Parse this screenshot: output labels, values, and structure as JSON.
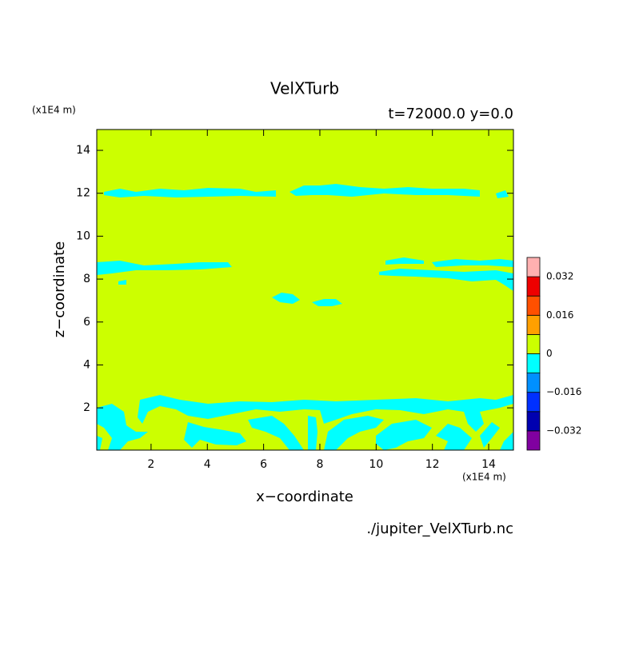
{
  "chart_data": {
    "type": "contour",
    "title": "VelXTurb",
    "subtitle": "t=72000.0 y=0.0",
    "x_label": "x−coordinate",
    "y_label": "z−coordinate",
    "x_unit": "(x1E4 m)",
    "y_unit": "(x1E4 m)",
    "source": "./jupiter_VelXTurb.nc",
    "xlim": [
      0.07,
      14.88
    ],
    "ylim": [
      0.03,
      14.97
    ],
    "xticks": [
      2,
      4,
      6,
      8,
      10,
      12,
      14
    ],
    "yticks": [
      2,
      4,
      6,
      8,
      10,
      12,
      14
    ],
    "colorbar": {
      "levels": [
        -0.04,
        -0.032,
        -0.024,
        -0.016,
        -0.008,
        0,
        0.008,
        0.016,
        0.024,
        0.032,
        0.04
      ],
      "colors": [
        "#8000a0",
        "#0000b0",
        "#0030ff",
        "#0090ff",
        "#00ffff",
        "#ccff00",
        "#ffa000",
        "#ff5000",
        "#ee0000",
        "#ffb0b0"
      ],
      "ticks": [
        {
          "value": -0.032,
          "label": "−0.032"
        },
        {
          "value": -0.016,
          "label": "−0.016"
        },
        0,
        0.016,
        0.032
      ]
    }
  }
}
